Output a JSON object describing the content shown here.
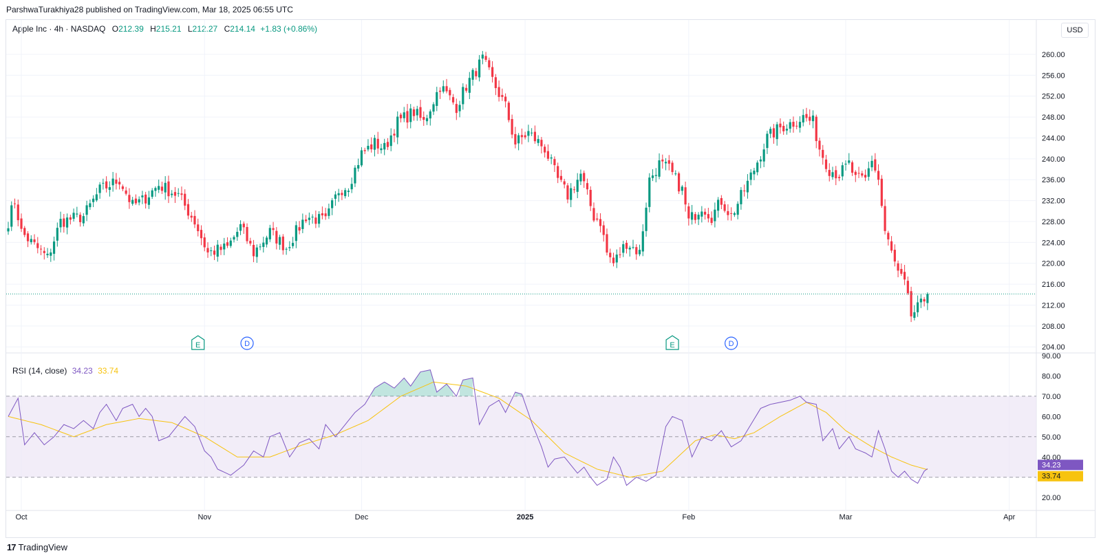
{
  "header": {
    "published_by": "ParshwaTurakhiya28 published on TradingView.com, Mar 18, 2025 06:55 UTC"
  },
  "legend": {
    "symbol": "Apple Inc · 4h · NASDAQ",
    "o_label": "O",
    "o_value": "212.39",
    "h_label": "H",
    "h_value": "215.21",
    "l_label": "L",
    "l_value": "212.27",
    "c_label": "C",
    "c_value": "214.14",
    "change": "+1.83 (+0.86%)"
  },
  "currency_button": "USD",
  "rsi_legend": {
    "label": "RSI (14, close)",
    "rsi_value": "34.23",
    "ma_value": "33.74"
  },
  "branding": {
    "name": "TradingView"
  },
  "events": [
    {
      "letter": "E",
      "date": "Oct 31",
      "type": "earnings"
    },
    {
      "letter": "D",
      "date": "Nov 8",
      "type": "dividend"
    },
    {
      "letter": "E",
      "date": "Jan 30",
      "type": "earnings"
    },
    {
      "letter": "D",
      "date": "Feb 10",
      "type": "dividend"
    }
  ],
  "colors": {
    "up": "#089981",
    "down": "#f23645",
    "rsi": "#7e57c2",
    "rsi_ma": "#f7c30f",
    "band": "#ede7f6"
  },
  "chart_data": [
    {
      "type": "candlestick",
      "title": "Apple Inc · 4h · NASDAQ",
      "x_tick_labels": [
        "Oct",
        "Nov",
        "Dec",
        "2025",
        "Feb",
        "Mar",
        "Apr"
      ],
      "y_tick_labels": [
        "204.00",
        "208.00",
        "212.00",
        "216.00",
        "220.00",
        "224.00",
        "228.00",
        "232.00",
        "236.00",
        "240.00",
        "244.00",
        "248.00",
        "252.00",
        "256.00",
        "260.00"
      ],
      "ylim": [
        203.5,
        262.5
      ],
      "last_price": 214.14,
      "grid": true,
      "series": [
        {
          "name": "AAPL",
          "anchor_closes": [
            {
              "x": 0,
              "c": 228
            },
            {
              "x": 2,
              "c": 232
            },
            {
              "x": 4,
              "c": 226
            },
            {
              "x": 7,
              "c": 224
            },
            {
              "x": 12,
              "c": 221
            },
            {
              "x": 16,
              "c": 228
            },
            {
              "x": 23,
              "c": 229
            },
            {
              "x": 28,
              "c": 234
            },
            {
              "x": 34,
              "c": 236
            },
            {
              "x": 38,
              "c": 231
            },
            {
              "x": 41,
              "c": 232
            },
            {
              "x": 46,
              "c": 235
            },
            {
              "x": 52,
              "c": 233
            },
            {
              "x": 57,
              "c": 228
            },
            {
              "x": 61,
              "c": 222
            },
            {
              "x": 67,
              "c": 223
            },
            {
              "x": 71,
              "c": 227
            },
            {
              "x": 75,
              "c": 222
            },
            {
              "x": 80,
              "c": 226
            },
            {
              "x": 85,
              "c": 223
            },
            {
              "x": 91,
              "c": 229
            },
            {
              "x": 97,
              "c": 228
            },
            {
              "x": 101,
              "c": 234
            },
            {
              "x": 104,
              "c": 235
            },
            {
              "x": 108,
              "c": 241
            },
            {
              "x": 112,
              "c": 243
            },
            {
              "x": 115,
              "c": 242
            },
            {
              "x": 119,
              "c": 247
            },
            {
              "x": 124,
              "c": 249
            },
            {
              "x": 127,
              "c": 247
            },
            {
              "x": 132,
              "c": 254
            },
            {
              "x": 137,
              "c": 250
            },
            {
              "x": 140,
              "c": 254
            },
            {
              "x": 145,
              "c": 259
            },
            {
              "x": 148,
              "c": 255
            },
            {
              "x": 152,
              "c": 250
            },
            {
              "x": 155,
              "c": 243
            },
            {
              "x": 159,
              "c": 245
            },
            {
              "x": 164,
              "c": 242
            },
            {
              "x": 168,
              "c": 236
            },
            {
              "x": 171,
              "c": 233
            },
            {
              "x": 175,
              "c": 237
            },
            {
              "x": 179,
              "c": 229
            },
            {
              "x": 181,
              "c": 228
            },
            {
              "x": 183,
              "c": 222
            },
            {
              "x": 185,
              "c": 220
            },
            {
              "x": 189,
              "c": 224
            },
            {
              "x": 193,
              "c": 222
            },
            {
              "x": 196,
              "c": 236
            },
            {
              "x": 199,
              "c": 239
            },
            {
              "x": 202,
              "c": 238
            },
            {
              "x": 204,
              "c": 236
            },
            {
              "x": 206,
              "c": 234
            },
            {
              "x": 208,
              "c": 228
            },
            {
              "x": 212,
              "c": 231
            },
            {
              "x": 215,
              "c": 229
            },
            {
              "x": 218,
              "c": 232
            },
            {
              "x": 221,
              "c": 229
            },
            {
              "x": 225,
              "c": 234
            },
            {
              "x": 228,
              "c": 238
            },
            {
              "x": 232,
              "c": 244
            },
            {
              "x": 236,
              "c": 246
            },
            {
              "x": 240,
              "c": 247
            },
            {
              "x": 243,
              "c": 248
            },
            {
              "x": 246,
              "c": 247
            },
            {
              "x": 248,
              "c": 242
            },
            {
              "x": 251,
              "c": 238
            },
            {
              "x": 254,
              "c": 237
            },
            {
              "x": 257,
              "c": 239
            },
            {
              "x": 259,
              "c": 236
            },
            {
              "x": 262,
              "c": 236
            },
            {
              "x": 264,
              "c": 240
            },
            {
              "x": 266,
              "c": 236
            },
            {
              "x": 268,
              "c": 226
            },
            {
              "x": 270,
              "c": 222
            },
            {
              "x": 272,
              "c": 218
            },
            {
              "x": 274,
              "c": 216
            },
            {
              "x": 276,
              "c": 210
            },
            {
              "x": 279,
              "c": 212
            },
            {
              "x": 281,
              "c": 214.14
            }
          ]
        }
      ]
    },
    {
      "type": "line",
      "title": "RSI (14, close)",
      "y_tick_labels": [
        "20.00",
        "40.00",
        "50.00",
        "60.00",
        "70.00",
        "80.00",
        "90.00"
      ],
      "ylim": [
        17,
        90
      ],
      "bands": {
        "upper": 70,
        "middle": 50,
        "lower": 30
      },
      "last_values": {
        "rsi": 34.23,
        "ma": 33.74
      },
      "series": [
        {
          "name": "RSI",
          "color": "#7e57c2",
          "anchors": [
            {
              "x": 0,
              "y": 60
            },
            {
              "x": 3,
              "y": 69
            },
            {
              "x": 5,
              "y": 46
            },
            {
              "x": 8,
              "y": 52
            },
            {
              "x": 11,
              "y": 46
            },
            {
              "x": 14,
              "y": 50
            },
            {
              "x": 17,
              "y": 56
            },
            {
              "x": 20,
              "y": 54
            },
            {
              "x": 23,
              "y": 58
            },
            {
              "x": 26,
              "y": 54
            },
            {
              "x": 28,
              "y": 62
            },
            {
              "x": 30,
              "y": 66
            },
            {
              "x": 33,
              "y": 58
            },
            {
              "x": 35,
              "y": 64
            },
            {
              "x": 38,
              "y": 66
            },
            {
              "x": 40,
              "y": 60
            },
            {
              "x": 42,
              "y": 64
            },
            {
              "x": 44,
              "y": 60
            },
            {
              "x": 46,
              "y": 48
            },
            {
              "x": 49,
              "y": 50
            },
            {
              "x": 52,
              "y": 56
            },
            {
              "x": 54,
              "y": 60
            },
            {
              "x": 57,
              "y": 55
            },
            {
              "x": 60,
              "y": 43
            },
            {
              "x": 62,
              "y": 40
            },
            {
              "x": 64,
              "y": 34
            },
            {
              "x": 68,
              "y": 31
            },
            {
              "x": 72,
              "y": 36
            },
            {
              "x": 75,
              "y": 43
            },
            {
              "x": 78,
              "y": 40
            },
            {
              "x": 80,
              "y": 50
            },
            {
              "x": 83,
              "y": 52
            },
            {
              "x": 86,
              "y": 40
            },
            {
              "x": 89,
              "y": 47
            },
            {
              "x": 92,
              "y": 49
            },
            {
              "x": 95,
              "y": 44
            },
            {
              "x": 97,
              "y": 56
            },
            {
              "x": 100,
              "y": 50
            },
            {
              "x": 103,
              "y": 56
            },
            {
              "x": 106,
              "y": 62
            },
            {
              "x": 109,
              "y": 66
            },
            {
              "x": 112,
              "y": 74
            },
            {
              "x": 115,
              "y": 77
            },
            {
              "x": 118,
              "y": 74
            },
            {
              "x": 121,
              "y": 79
            },
            {
              "x": 123,
              "y": 75
            },
            {
              "x": 126,
              "y": 82
            },
            {
              "x": 129,
              "y": 83
            },
            {
              "x": 131,
              "y": 72
            },
            {
              "x": 134,
              "y": 76
            },
            {
              "x": 137,
              "y": 70
            },
            {
              "x": 139,
              "y": 78
            },
            {
              "x": 142,
              "y": 79
            },
            {
              "x": 144,
              "y": 56
            },
            {
              "x": 147,
              "y": 65
            },
            {
              "x": 150,
              "y": 68
            },
            {
              "x": 152,
              "y": 62
            },
            {
              "x": 155,
              "y": 72
            },
            {
              "x": 157,
              "y": 71
            },
            {
              "x": 160,
              "y": 57
            },
            {
              "x": 163,
              "y": 45
            },
            {
              "x": 165,
              "y": 35
            },
            {
              "x": 167,
              "y": 39
            },
            {
              "x": 170,
              "y": 40
            },
            {
              "x": 172,
              "y": 36
            },
            {
              "x": 174,
              "y": 32
            },
            {
              "x": 176,
              "y": 35
            },
            {
              "x": 178,
              "y": 30
            },
            {
              "x": 180,
              "y": 26
            },
            {
              "x": 183,
              "y": 29
            },
            {
              "x": 185,
              "y": 40
            },
            {
              "x": 187,
              "y": 35
            },
            {
              "x": 189,
              "y": 26
            },
            {
              "x": 192,
              "y": 30
            },
            {
              "x": 195,
              "y": 28
            },
            {
              "x": 198,
              "y": 31
            },
            {
              "x": 201,
              "y": 55
            },
            {
              "x": 203,
              "y": 60
            },
            {
              "x": 206,
              "y": 58
            },
            {
              "x": 209,
              "y": 40
            },
            {
              "x": 212,
              "y": 50
            },
            {
              "x": 215,
              "y": 48
            },
            {
              "x": 218,
              "y": 53
            },
            {
              "x": 221,
              "y": 45
            },
            {
              "x": 224,
              "y": 48
            },
            {
              "x": 227,
              "y": 56
            },
            {
              "x": 230,
              "y": 64
            },
            {
              "x": 233,
              "y": 66
            },
            {
              "x": 236,
              "y": 67
            },
            {
              "x": 239,
              "y": 68
            },
            {
              "x": 242,
              "y": 70
            },
            {
              "x": 244,
              "y": 67
            },
            {
              "x": 247,
              "y": 66
            },
            {
              "x": 249,
              "y": 48
            },
            {
              "x": 252,
              "y": 54
            },
            {
              "x": 254,
              "y": 44
            },
            {
              "x": 257,
              "y": 50
            },
            {
              "x": 259,
              "y": 44
            },
            {
              "x": 262,
              "y": 42
            },
            {
              "x": 264,
              "y": 40
            },
            {
              "x": 266,
              "y": 53
            },
            {
              "x": 268,
              "y": 44
            },
            {
              "x": 270,
              "y": 33
            },
            {
              "x": 272,
              "y": 30
            },
            {
              "x": 274,
              "y": 33
            },
            {
              "x": 276,
              "y": 29
            },
            {
              "x": 278,
              "y": 27
            },
            {
              "x": 280,
              "y": 33
            },
            {
              "x": 281,
              "y": 34.23
            }
          ]
        },
        {
          "name": "RSI-based MA",
          "color": "#f7c30f",
          "anchors": [
            {
              "x": 0,
              "y": 60
            },
            {
              "x": 10,
              "y": 56
            },
            {
              "x": 20,
              "y": 50
            },
            {
              "x": 30,
              "y": 56
            },
            {
              "x": 40,
              "y": 59
            },
            {
              "x": 50,
              "y": 57
            },
            {
              "x": 60,
              "y": 50
            },
            {
              "x": 70,
              "y": 40
            },
            {
              "x": 80,
              "y": 40
            },
            {
              "x": 90,
              "y": 46
            },
            {
              "x": 100,
              "y": 51
            },
            {
              "x": 110,
              "y": 58
            },
            {
              "x": 120,
              "y": 70
            },
            {
              "x": 130,
              "y": 77
            },
            {
              "x": 140,
              "y": 75
            },
            {
              "x": 150,
              "y": 69
            },
            {
              "x": 160,
              "y": 58
            },
            {
              "x": 170,
              "y": 42
            },
            {
              "x": 180,
              "y": 34
            },
            {
              "x": 190,
              "y": 30
            },
            {
              "x": 200,
              "y": 33
            },
            {
              "x": 210,
              "y": 48
            },
            {
              "x": 216,
              "y": 51
            },
            {
              "x": 222,
              "y": 49
            },
            {
              "x": 228,
              "y": 52
            },
            {
              "x": 236,
              "y": 60
            },
            {
              "x": 244,
              "y": 67
            },
            {
              "x": 250,
              "y": 62
            },
            {
              "x": 256,
              "y": 53
            },
            {
              "x": 264,
              "y": 45
            },
            {
              "x": 270,
              "y": 40
            },
            {
              "x": 276,
              "y": 36
            },
            {
              "x": 281,
              "y": 33.74
            }
          ]
        }
      ]
    }
  ]
}
